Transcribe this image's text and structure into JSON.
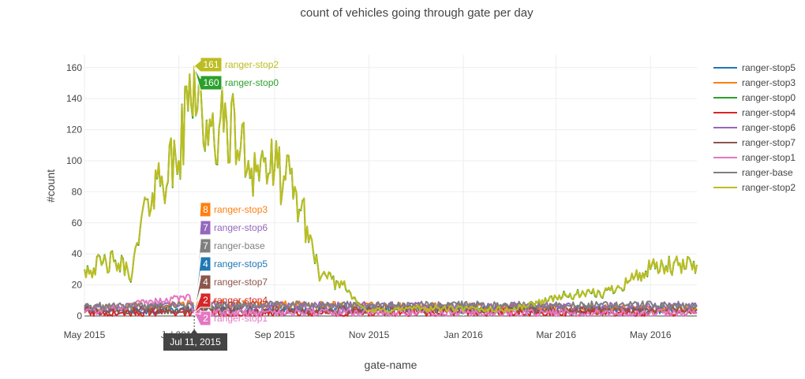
{
  "chart_data": {
    "type": "line",
    "title": "count of vehicles going through gate per day",
    "xlabel": "gate-name",
    "ylabel": "#count",
    "ylim": [
      0,
      168
    ],
    "y_ticks": [
      0,
      20,
      40,
      60,
      80,
      100,
      120,
      140,
      160
    ],
    "x_ticks": [
      {
        "date": "2015-05-01",
        "label": "May 2015"
      },
      {
        "date": "2015-07-01",
        "label": "Jul 2015"
      },
      {
        "date": "2015-09-01",
        "label": "Sep 2015"
      },
      {
        "date": "2015-11-01",
        "label": "Nov 2015"
      },
      {
        "date": "2016-01-01",
        "label": "Jan 2016"
      },
      {
        "date": "2016-03-01",
        "label": "Mar 2016"
      },
      {
        "date": "2016-05-01",
        "label": "May 2016"
      }
    ],
    "x_range": [
      "2015-05-01",
      "2016-05-31"
    ],
    "grid": true,
    "legend_position": "right",
    "series": [
      {
        "name": "ranger-stop5",
        "color": "#1f77b4",
        "keypoints": [
          [
            "2015-05-01",
            3
          ],
          [
            "2015-07-11",
            4
          ],
          [
            "2016-05-31",
            4
          ]
        ]
      },
      {
        "name": "ranger-stop3",
        "color": "#ff7f0e",
        "keypoints": [
          [
            "2015-05-01",
            4
          ],
          [
            "2015-07-11",
            8
          ],
          [
            "2016-05-31",
            4
          ]
        ]
      },
      {
        "name": "ranger-stop0",
        "color": "#2ca02c",
        "keypoints": [
          [
            "2015-05-01",
            30
          ],
          [
            "2015-05-20",
            35
          ],
          [
            "2015-06-01",
            28
          ],
          [
            "2015-06-10",
            75
          ],
          [
            "2015-06-20",
            90
          ],
          [
            "2015-07-01",
            100
          ],
          [
            "2015-07-11",
            160
          ],
          [
            "2015-07-20",
            110
          ],
          [
            "2015-08-01",
            125
          ],
          [
            "2015-08-15",
            100
          ],
          [
            "2015-09-01",
            95
          ],
          [
            "2015-09-15",
            80
          ],
          [
            "2015-10-01",
            25
          ],
          [
            "2015-10-15",
            20
          ],
          [
            "2015-10-31",
            3
          ],
          [
            "2015-12-01",
            5
          ],
          [
            "2016-02-01",
            4
          ],
          [
            "2016-03-01",
            12
          ],
          [
            "2016-04-01",
            15
          ],
          [
            "2016-05-01",
            30
          ],
          [
            "2016-05-31",
            33
          ]
        ]
      },
      {
        "name": "ranger-stop4",
        "color": "#d62728",
        "keypoints": [
          [
            "2015-05-01",
            2
          ],
          [
            "2015-07-11",
            2
          ],
          [
            "2016-05-31",
            2
          ]
        ]
      },
      {
        "name": "ranger-stop6",
        "color": "#9467bd",
        "keypoints": [
          [
            "2015-05-01",
            5
          ],
          [
            "2015-07-11",
            7
          ],
          [
            "2016-05-31",
            6
          ]
        ]
      },
      {
        "name": "ranger-stop7",
        "color": "#8c564b",
        "keypoints": [
          [
            "2015-05-01",
            4
          ],
          [
            "2015-07-11",
            4
          ],
          [
            "2016-05-31",
            4
          ]
        ]
      },
      {
        "name": "ranger-stop1",
        "color": "#e377c2",
        "keypoints": [
          [
            "2015-05-01",
            2
          ],
          [
            "2015-07-08",
            13
          ],
          [
            "2015-07-11",
            2
          ],
          [
            "2016-05-31",
            2
          ]
        ]
      },
      {
        "name": "ranger-base",
        "color": "#7f7f7f",
        "keypoints": [
          [
            "2015-05-01",
            6
          ],
          [
            "2015-07-11",
            7
          ],
          [
            "2016-05-31",
            7
          ]
        ]
      },
      {
        "name": "ranger-stop2",
        "color": "#bcbd22",
        "keypoints": [
          [
            "2015-05-01",
            30
          ],
          [
            "2015-05-20",
            35
          ],
          [
            "2015-06-01",
            28
          ],
          [
            "2015-06-10",
            75
          ],
          [
            "2015-06-20",
            90
          ],
          [
            "2015-07-01",
            100
          ],
          [
            "2015-07-11",
            161
          ],
          [
            "2015-07-20",
            110
          ],
          [
            "2015-08-01",
            125
          ],
          [
            "2015-08-15",
            100
          ],
          [
            "2015-09-01",
            95
          ],
          [
            "2015-09-15",
            80
          ],
          [
            "2015-10-01",
            25
          ],
          [
            "2015-10-15",
            20
          ],
          [
            "2015-10-31",
            3
          ],
          [
            "2015-12-01",
            5
          ],
          [
            "2016-02-01",
            4
          ],
          [
            "2016-03-01",
            12
          ],
          [
            "2016-04-01",
            15
          ],
          [
            "2016-05-01",
            30
          ],
          [
            "2016-05-31",
            33
          ]
        ]
      }
    ],
    "hover": {
      "date": "2015-07-11",
      "date_label": "Jul 11, 2015",
      "labels": [
        {
          "series": "ranger-stop2",
          "value": "161"
        },
        {
          "series": "ranger-stop0",
          "value": "160"
        },
        {
          "series": "ranger-stop3",
          "value": "8"
        },
        {
          "series": "ranger-stop6",
          "value": "7"
        },
        {
          "series": "ranger-base",
          "value": "7"
        },
        {
          "series": "ranger-stop5",
          "value": "4"
        },
        {
          "series": "ranger-stop7",
          "value": "4"
        },
        {
          "series": "ranger-stop4",
          "value": "2"
        },
        {
          "series": "ranger-stop1",
          "value": "2"
        }
      ]
    }
  }
}
